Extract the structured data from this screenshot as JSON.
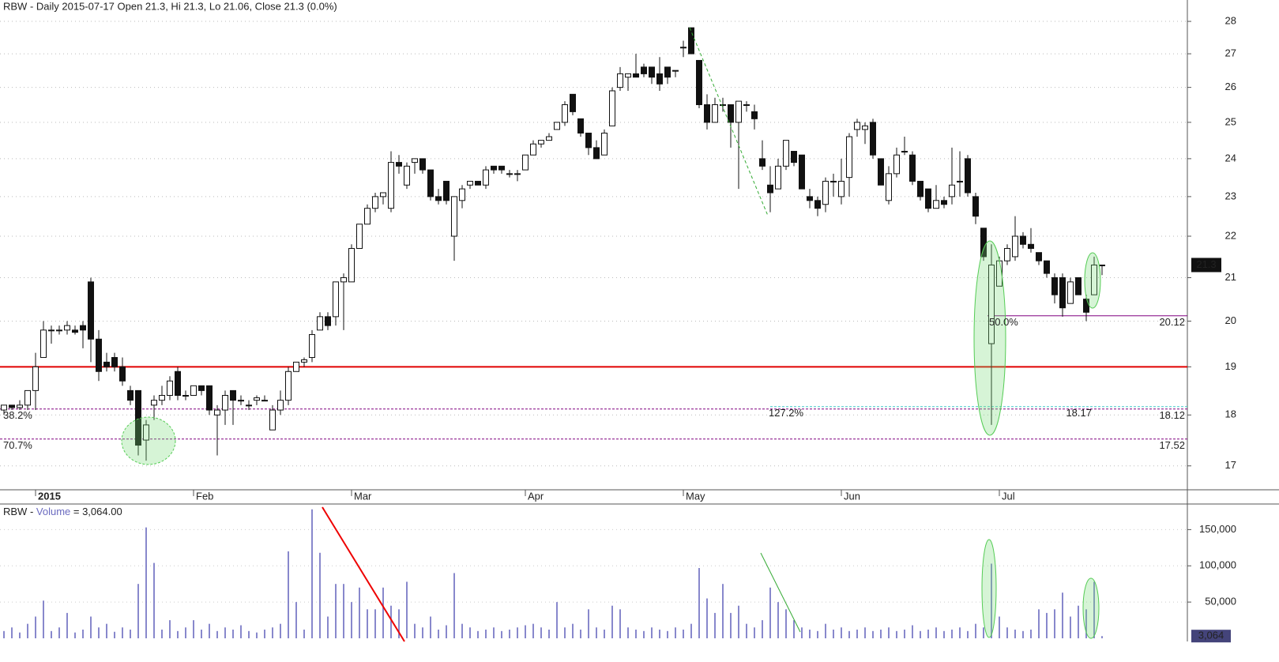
{
  "chart_data": {
    "type": "candlestick",
    "title": "RBW - Daily 2015-07-17 Open 21.3, Hi 21.3, Lo 21.06, Close 21.3 (0.0%)",
    "log_scale": true,
    "ylim": [
      16.55,
      28.68
    ],
    "yticks": [
      17,
      18,
      19,
      20,
      21,
      22,
      23,
      24,
      25,
      26,
      27,
      28
    ],
    "grid": true,
    "xlim": [
      -0.5,
      149.8
    ],
    "xticks": [
      {
        "value": 4,
        "label": "2015"
      },
      {
        "value": 24,
        "label": "Feb"
      },
      {
        "value": 44,
        "label": "Mar"
      },
      {
        "value": 66,
        "label": "Apr"
      },
      {
        "value": 86,
        "label": "May"
      },
      {
        "value": 106,
        "label": "Jun"
      },
      {
        "value": 126,
        "label": "Jul"
      }
    ],
    "up_color": "#ffffff",
    "down_color": "#111111",
    "candles": [
      [
        18.1,
        18.2,
        18.0,
        18.2
      ],
      [
        18.2,
        18.2,
        18.1,
        18.15
      ],
      [
        18.15,
        18.3,
        18.1,
        18.2
      ],
      [
        18.2,
        18.5,
        18.1,
        18.5
      ],
      [
        18.5,
        19.3,
        18.1,
        19.0
      ],
      [
        19.2,
        20.0,
        19.2,
        19.8
      ],
      [
        19.8,
        19.9,
        19.5,
        19.8
      ],
      [
        19.8,
        19.9,
        19.7,
        19.8
      ],
      [
        19.8,
        20.0,
        19.7,
        19.9
      ],
      [
        19.8,
        19.9,
        19.7,
        19.75
      ],
      [
        19.9,
        20.0,
        19.4,
        19.8
      ],
      [
        20.9,
        21.0,
        19.1,
        19.6
      ],
      [
        19.6,
        19.8,
        18.7,
        18.9
      ],
      [
        19.1,
        19.3,
        18.9,
        19.0
      ],
      [
        19.2,
        19.3,
        18.9,
        19.0
      ],
      [
        19.0,
        19.2,
        18.6,
        18.7
      ],
      [
        18.5,
        18.6,
        18.2,
        18.3
      ],
      [
        18.5,
        18.5,
        17.2,
        17.4
      ],
      [
        17.5,
        17.9,
        17.1,
        17.8
      ],
      [
        18.2,
        18.4,
        17.9,
        18.3
      ],
      [
        18.3,
        18.6,
        18.2,
        18.4
      ],
      [
        18.4,
        18.8,
        18.3,
        18.7
      ],
      [
        18.9,
        19.0,
        18.3,
        18.4
      ],
      [
        18.4,
        18.5,
        18.3,
        18.4
      ],
      [
        18.4,
        18.6,
        18.4,
        18.6
      ],
      [
        18.6,
        18.6,
        18.4,
        18.5
      ],
      [
        18.6,
        18.6,
        18.0,
        18.1
      ],
      [
        18.0,
        18.2,
        17.2,
        18.1
      ],
      [
        18.1,
        18.5,
        17.8,
        18.4
      ],
      [
        18.5,
        18.5,
        17.8,
        18.3
      ],
      [
        18.3,
        18.4,
        18.2,
        18.3
      ],
      [
        18.2,
        18.3,
        18.1,
        18.2
      ],
      [
        18.3,
        18.4,
        18.2,
        18.35
      ],
      [
        18.3,
        18.4,
        18.3,
        18.3
      ],
      [
        17.7,
        18.2,
        17.7,
        18.1
      ],
      [
        18.1,
        18.5,
        18.0,
        18.3
      ],
      [
        18.3,
        19.0,
        18.2,
        18.9
      ],
      [
        18.9,
        19.1,
        18.9,
        19.1
      ],
      [
        19.1,
        19.2,
        19.0,
        19.15
      ],
      [
        19.2,
        19.8,
        19.1,
        19.7
      ],
      [
        19.8,
        20.2,
        19.8,
        20.1
      ],
      [
        20.1,
        20.2,
        19.8,
        19.9
      ],
      [
        20.1,
        20.9,
        19.9,
        20.9
      ],
      [
        20.9,
        21.1,
        19.8,
        21.0
      ],
      [
        20.9,
        21.8,
        20.9,
        21.7
      ],
      [
        21.7,
        22.3,
        21.7,
        22.3
      ],
      [
        22.3,
        22.8,
        22.3,
        22.7
      ],
      [
        22.7,
        23.1,
        22.6,
        23.0
      ],
      [
        23.0,
        23.1,
        22.8,
        23.1
      ],
      [
        22.7,
        24.2,
        22.6,
        23.9
      ],
      [
        23.9,
        24.1,
        23.6,
        23.8
      ],
      [
        23.3,
        23.9,
        23.2,
        23.8
      ],
      [
        23.9,
        24.0,
        23.6,
        24.0
      ],
      [
        24.0,
        24.0,
        23.6,
        23.7
      ],
      [
        23.7,
        23.7,
        22.9,
        23.0
      ],
      [
        23.0,
        23.2,
        22.8,
        22.9
      ],
      [
        23.4,
        23.4,
        22.8,
        22.9
      ],
      [
        22.0,
        23.0,
        21.4,
        23.0
      ],
      [
        22.9,
        23.3,
        22.7,
        23.2
      ],
      [
        23.3,
        23.4,
        23.2,
        23.4
      ],
      [
        23.4,
        23.4,
        23.3,
        23.3
      ],
      [
        23.3,
        23.8,
        23.2,
        23.7
      ],
      [
        23.8,
        23.8,
        23.6,
        23.7
      ],
      [
        23.8,
        23.8,
        23.6,
        23.7
      ],
      [
        23.6,
        23.7,
        23.5,
        23.6
      ],
      [
        23.6,
        23.7,
        23.4,
        23.6
      ],
      [
        23.7,
        24.1,
        23.7,
        24.1
      ],
      [
        24.1,
        24.5,
        24.1,
        24.4
      ],
      [
        24.4,
        24.5,
        24.3,
        24.5
      ],
      [
        24.5,
        24.7,
        24.5,
        24.6
      ],
      [
        24.8,
        25.0,
        24.8,
        25.0
      ],
      [
        25.0,
        25.6,
        24.9,
        25.5
      ],
      [
        25.8,
        25.8,
        25.2,
        25.3
      ],
      [
        25.1,
        25.1,
        24.6,
        24.7
      ],
      [
        24.7,
        24.7,
        24.1,
        24.3
      ],
      [
        24.3,
        24.5,
        24.0,
        24.0
      ],
      [
        24.1,
        24.8,
        24.1,
        24.7
      ],
      [
        24.9,
        26.0,
        24.9,
        25.9
      ],
      [
        26.0,
        26.6,
        25.9,
        26.4
      ],
      [
        26.3,
        26.4,
        25.9,
        26.4
      ],
      [
        26.4,
        27.0,
        26.3,
        26.3
      ],
      [
        26.6,
        26.7,
        26.3,
        26.4
      ],
      [
        26.6,
        26.6,
        26.1,
        26.3
      ],
      [
        26.4,
        26.9,
        25.9,
        26.1
      ],
      [
        26.6,
        26.6,
        26.1,
        26.3
      ],
      [
        26.5,
        26.5,
        26.3,
        26.5
      ],
      [
        27.2,
        27.4,
        26.9,
        27.2
      ],
      [
        27.8,
        27.8,
        27.0,
        27.0
      ],
      [
        26.8,
        26.8,
        25.4,
        25.5
      ],
      [
        25.5,
        25.8,
        24.8,
        25.0
      ],
      [
        25.0,
        25.7,
        25.0,
        25.5
      ],
      [
        25.5,
        25.7,
        25.3,
        25.5
      ],
      [
        25.5,
        25.5,
        24.3,
        25.0
      ],
      [
        25.0,
        25.6,
        23.2,
        25.6
      ],
      [
        25.5,
        25.6,
        25.3,
        25.5
      ],
      [
        25.3,
        25.5,
        24.8,
        25.1
      ],
      [
        24.0,
        24.5,
        23.7,
        23.8
      ],
      [
        23.3,
        23.8,
        22.6,
        23.1
      ],
      [
        23.2,
        24.0,
        23.2,
        23.8
      ],
      [
        23.8,
        24.5,
        23.7,
        24.5
      ],
      [
        24.2,
        24.2,
        23.8,
        23.9
      ],
      [
        24.1,
        24.1,
        23.2,
        23.2
      ],
      [
        23.0,
        23.2,
        22.7,
        22.9
      ],
      [
        22.9,
        23.0,
        22.5,
        22.7
      ],
      [
        22.8,
        23.5,
        22.6,
        23.4
      ],
      [
        23.4,
        23.6,
        23.0,
        23.4
      ],
      [
        23.0,
        24.0,
        22.8,
        23.4
      ],
      [
        23.5,
        24.7,
        23.0,
        24.6
      ],
      [
        24.8,
        25.1,
        24.6,
        25.0
      ],
      [
        24.8,
        25.0,
        24.4,
        24.9
      ],
      [
        25.0,
        25.1,
        24.0,
        24.1
      ],
      [
        24.0,
        24.0,
        23.3,
        23.3
      ],
      [
        22.9,
        23.8,
        22.8,
        23.6
      ],
      [
        23.6,
        24.3,
        23.5,
        24.1
      ],
      [
        24.2,
        24.6,
        24.1,
        24.2
      ],
      [
        24.1,
        24.2,
        23.3,
        23.4
      ],
      [
        23.4,
        23.4,
        22.9,
        23.0
      ],
      [
        23.2,
        23.2,
        22.6,
        22.7
      ],
      [
        22.7,
        23.3,
        22.7,
        22.9
      ],
      [
        22.9,
        23.0,
        22.7,
        22.8
      ],
      [
        23.0,
        24.3,
        22.8,
        23.3
      ],
      [
        23.4,
        24.2,
        23.0,
        23.4
      ],
      [
        24.0,
        24.1,
        23.0,
        23.1
      ],
      [
        23.0,
        23.1,
        22.3,
        22.5
      ],
      [
        22.2,
        22.2,
        21.4,
        21.5
      ],
      [
        19.5,
        21.8,
        17.8,
        21.3
      ],
      [
        20.8,
        21.5,
        20.8,
        21.4
      ],
      [
        21.4,
        21.8,
        21.3,
        21.7
      ],
      [
        21.5,
        22.5,
        21.4,
        22.0
      ],
      [
        22.0,
        22.1,
        21.7,
        21.8
      ],
      [
        21.8,
        22.2,
        21.6,
        21.7
      ],
      [
        21.6,
        21.6,
        21.3,
        21.4
      ],
      [
        21.4,
        21.4,
        21.0,
        21.1
      ],
      [
        21.0,
        21.1,
        20.4,
        20.6
      ],
      [
        21.0,
        21.1,
        20.1,
        20.3
      ],
      [
        20.4,
        21.0,
        20.4,
        20.9
      ],
      [
        21.0,
        21.0,
        20.6,
        20.6
      ],
      [
        20.5,
        20.6,
        20.0,
        20.2
      ],
      [
        20.6,
        21.5,
        20.6,
        21.3
      ],
      [
        21.3,
        21.3,
        21.06,
        21.3
      ]
    ],
    "levels": [
      {
        "value": 20.12,
        "label": "50.0%",
        "color": "#800080"
      },
      {
        "value": 18.12,
        "label": "38.2%",
        "color": "#800080"
      },
      {
        "value": 17.52,
        "label": "70.7%",
        "color": "#800080"
      },
      {
        "value": 18.17,
        "label": "127.2%",
        "color": "#40c8c8"
      }
    ],
    "horizontal_line": {
      "value": 19,
      "color": "#e00000"
    },
    "volume": {
      "title": [
        "RBW - ",
        "Volume",
        " = 3,064.00"
      ],
      "color": "#6b6bc0",
      "ylim": [
        0,
        185300
      ],
      "yticks": [
        {
          "value": 50000,
          "label": "50,000"
        },
        {
          "value": 100000,
          "label": "100,000"
        },
        {
          "value": 150000,
          "label": "150,000"
        }
      ],
      "last_value_label": "3,064",
      "values": [
        10000,
        15000,
        8000,
        20000,
        30000,
        52000,
        10000,
        15000,
        35000,
        8000,
        12000,
        30000,
        15000,
        20000,
        9000,
        15000,
        12000,
        75000,
        153000,
        104000,
        12000,
        25000,
        10000,
        15000,
        25000,
        12000,
        20000,
        10000,
        15000,
        12000,
        18000,
        10000,
        8000,
        12000,
        15000,
        20000,
        120000,
        50000,
        12000,
        178000,
        118000,
        30000,
        75000,
        75000,
        50000,
        70000,
        40000,
        40000,
        70000,
        45000,
        40000,
        78000,
        20000,
        15000,
        30000,
        12000,
        18000,
        90000,
        20000,
        15000,
        10000,
        12000,
        15000,
        10000,
        12000,
        15000,
        18000,
        20000,
        15000,
        12000,
        50000,
        15000,
        20000,
        12000,
        40000,
        15000,
        12000,
        45000,
        40000,
        15000,
        12000,
        10000,
        15000,
        12000,
        10000,
        15000,
        12000,
        20000,
        97000,
        55000,
        35000,
        75000,
        35000,
        45000,
        20000,
        15000,
        25000,
        70000,
        50000,
        40000,
        25000,
        15000,
        12000,
        10000,
        20000,
        12000,
        15000,
        10000,
        12000,
        15000,
        10000,
        12000,
        15000,
        10000,
        12000,
        18000,
        10000,
        12000,
        15000,
        10000,
        12000,
        15000,
        10000,
        20000,
        15000,
        103000,
        30000,
        15000,
        12000,
        10000,
        12000,
        40000,
        35000,
        40000,
        63000,
        30000,
        45000,
        40000,
        78000,
        3064
      ]
    }
  }
}
